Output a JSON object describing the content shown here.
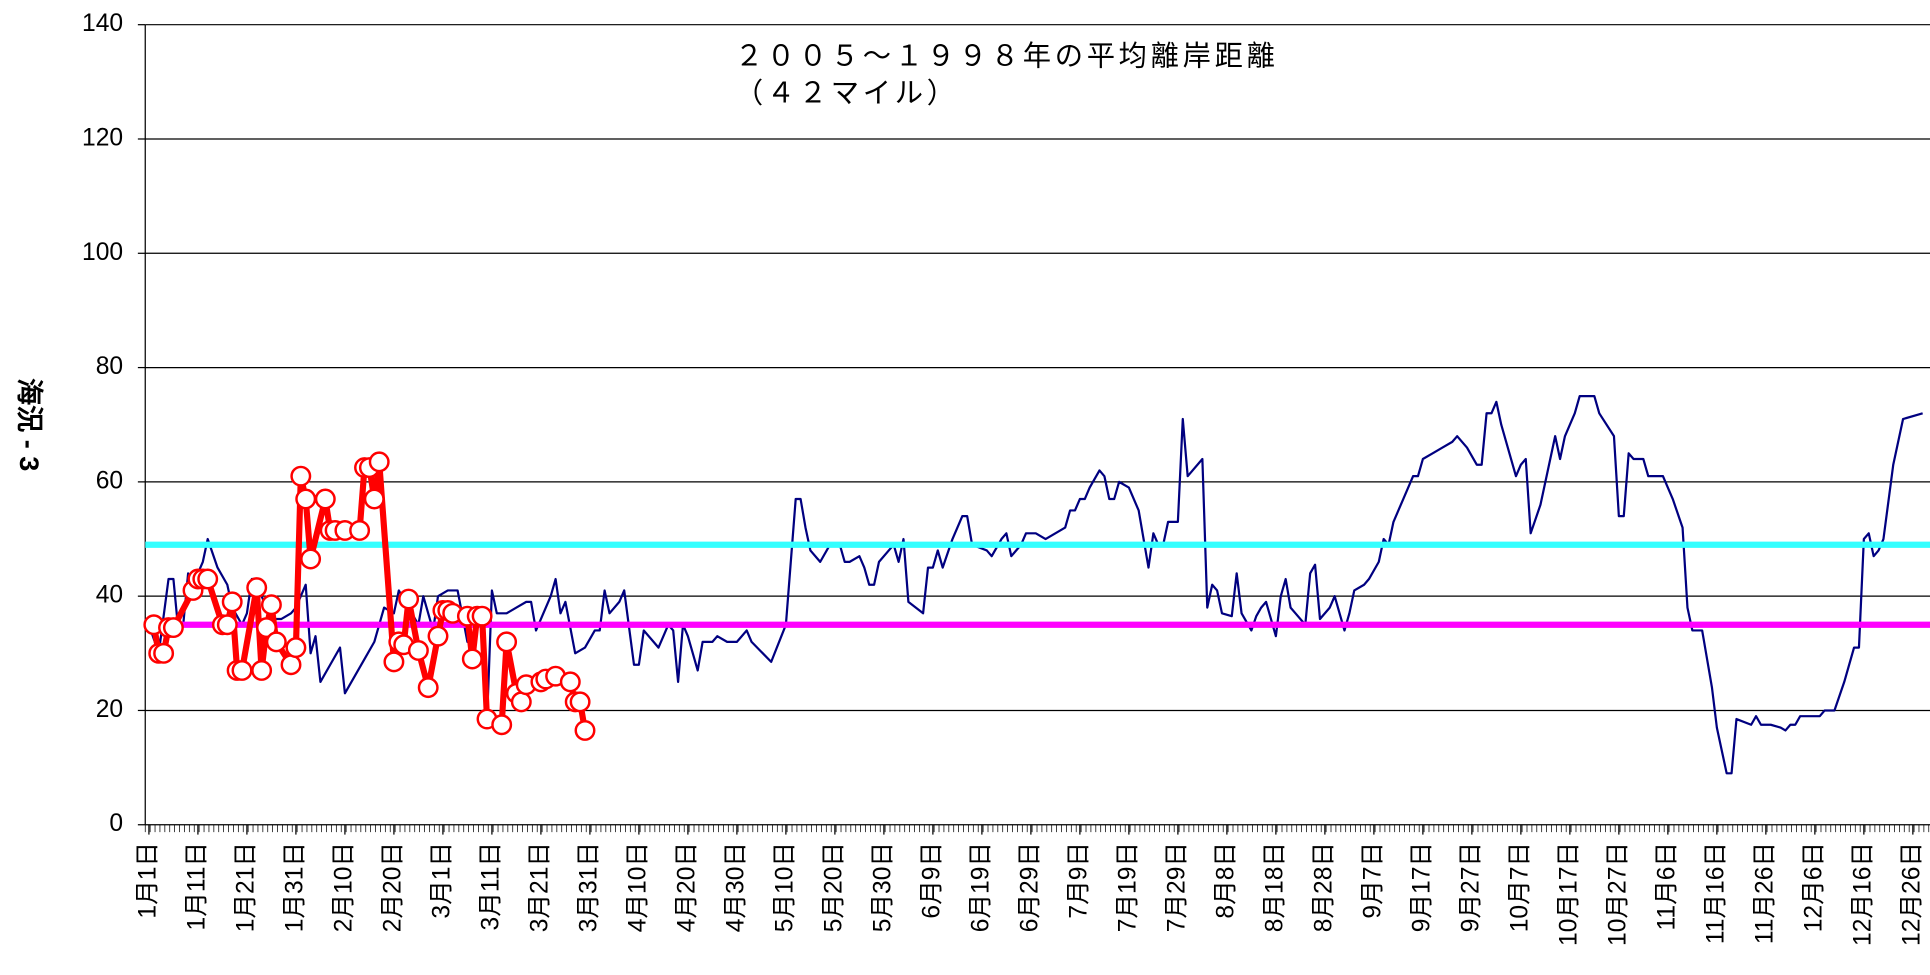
{
  "chart_data": {
    "type": "line",
    "annotations": [
      "２００５～１９９８年の平均離岸距離",
      "（４２マイル）"
    ],
    "ylabel": "海況 - 3",
    "xlim": [
      0.25,
      364.5
    ],
    "xticks": [
      {
        "value": 1,
        "label": "1月1日"
      },
      {
        "value": 11,
        "label": "1月11日"
      },
      {
        "value": 21,
        "label": "1月21日"
      },
      {
        "value": 31,
        "label": "1月31日"
      },
      {
        "value": 41,
        "label": "2月10日"
      },
      {
        "value": 51,
        "label": "2月20日"
      },
      {
        "value": 61,
        "label": "3月1日"
      },
      {
        "value": 71,
        "label": "3月11日"
      },
      {
        "value": 81,
        "label": "3月21日"
      },
      {
        "value": 91,
        "label": "3月31日"
      },
      {
        "value": 101,
        "label": "4月10日"
      },
      {
        "value": 111,
        "label": "4月20日"
      },
      {
        "value": 121,
        "label": "4月30日"
      },
      {
        "value": 131,
        "label": "5月10日"
      },
      {
        "value": 141,
        "label": "5月20日"
      },
      {
        "value": 151,
        "label": "5月30日"
      },
      {
        "value": 161,
        "label": "6月9日"
      },
      {
        "value": 171,
        "label": "6月19日"
      },
      {
        "value": 181,
        "label": "6月29日"
      },
      {
        "value": 191,
        "label": "7月9日"
      },
      {
        "value": 201,
        "label": "7月19日"
      },
      {
        "value": 211,
        "label": "7月29日"
      },
      {
        "value": 221,
        "label": "8月8日"
      },
      {
        "value": 231,
        "label": "8月18日"
      },
      {
        "value": 241,
        "label": "8月28日"
      },
      {
        "value": 251,
        "label": "9月7日"
      },
      {
        "value": 261,
        "label": "9月17日"
      },
      {
        "value": 271,
        "label": "9月27日"
      },
      {
        "value": 281,
        "label": "10月7日"
      },
      {
        "value": 291,
        "label": "10月17日"
      },
      {
        "value": 301,
        "label": "10月27日"
      },
      {
        "value": 311,
        "label": "11月6日"
      },
      {
        "value": 321,
        "label": "11月16日"
      },
      {
        "value": 331,
        "label": "11月26日"
      },
      {
        "value": 341,
        "label": "12月6日"
      },
      {
        "value": 351,
        "label": "12月16日"
      },
      {
        "value": 361,
        "label": "12月26日"
      }
    ],
    "ylim": [
      0,
      140
    ],
    "yticks": [
      0,
      20,
      40,
      60,
      80,
      100,
      120,
      140
    ],
    "grid": true,
    "series": [
      {
        "color": "#000080",
        "marker": "none",
        "x": [
          1,
          3,
          5,
          6,
          7,
          8,
          9,
          10,
          12,
          13,
          15,
          17,
          18,
          20,
          21,
          22,
          23,
          24,
          26,
          28,
          30,
          31,
          33,
          34,
          35,
          36,
          38,
          40,
          41,
          43,
          45,
          47,
          49,
          51,
          52,
          54,
          56,
          57,
          59,
          60,
          62,
          64,
          66,
          67,
          68,
          69,
          70,
          71,
          72,
          74,
          76,
          78,
          79,
          80,
          81,
          83,
          84,
          85,
          86,
          88,
          90,
          92,
          93,
          94,
          95,
          97,
          98,
          100,
          101,
          102,
          104,
          105,
          107,
          108,
          109,
          110,
          111,
          113,
          114,
          116,
          117,
          119,
          121,
          123,
          124,
          128,
          131,
          133,
          134,
          135,
          136,
          138,
          140,
          142,
          143,
          144,
          146,
          147,
          148,
          149,
          150,
          152,
          153,
          154,
          155,
          156,
          159,
          160,
          161,
          162,
          163,
          165,
          167,
          168,
          169,
          172,
          173,
          175,
          176,
          177,
          179,
          180,
          182,
          184,
          186,
          188,
          189,
          190,
          191,
          192,
          193,
          195,
          196,
          197,
          198,
          199,
          201,
          203,
          205,
          206,
          207,
          208,
          209,
          211,
          212,
          213,
          216,
          217,
          218,
          219,
          220,
          222,
          223,
          224,
          226,
          227,
          228,
          229,
          231,
          232,
          233,
          234,
          235,
          237,
          238,
          239,
          240,
          242,
          243,
          245,
          246,
          247,
          249,
          250,
          252,
          253,
          254,
          255,
          257,
          259,
          260,
          261,
          263,
          265,
          267,
          268,
          270,
          272,
          273,
          274,
          275,
          276,
          277,
          279,
          280,
          281,
          282,
          283,
          285,
          286,
          287,
          288,
          289,
          290,
          292,
          293,
          295,
          296,
          297,
          300,
          301,
          302,
          303,
          304,
          306,
          307,
          310,
          312,
          314,
          315,
          316,
          318,
          320,
          321,
          322,
          323,
          324,
          325,
          328,
          329,
          330,
          332,
          334,
          335,
          336,
          337,
          338,
          339,
          342,
          343,
          345,
          347,
          349,
          350,
          351,
          352,
          353,
          354,
          355,
          357,
          359,
          363
        ],
        "values": [
          35,
          30,
          43,
          43,
          34,
          35,
          44,
          42,
          46,
          50,
          45,
          42,
          38,
          35,
          37,
          43,
          43,
          40,
          36,
          36,
          37,
          38,
          42,
          30,
          33,
          25,
          28,
          31,
          23,
          26,
          29,
          32,
          38,
          37,
          41,
          38,
          35,
          40,
          34,
          40,
          41,
          41,
          32,
          33,
          28,
          30,
          18,
          41,
          37,
          37,
          38,
          39,
          39,
          34,
          36,
          40,
          43,
          37,
          39,
          30,
          31,
          34,
          34,
          41,
          37,
          39,
          41,
          28,
          28,
          34,
          32,
          31,
          35,
          34,
          25,
          35,
          33,
          27,
          32,
          32,
          33,
          32,
          32,
          34,
          32,
          28.5,
          35,
          57,
          57,
          52,
          48,
          46,
          49,
          49,
          46,
          46,
          47,
          45,
          42,
          42,
          46,
          48,
          49,
          46,
          50,
          39,
          37,
          45,
          45,
          48,
          45,
          50,
          54,
          54,
          49,
          48,
          47,
          50,
          51,
          47,
          49,
          51,
          51,
          50,
          51,
          52,
          55,
          55,
          57,
          57,
          59,
          62,
          61,
          57,
          57,
          60,
          59,
          55,
          45,
          51,
          49,
          49,
          53,
          53,
          71,
          61,
          64,
          38,
          42,
          41,
          37,
          36.5,
          44,
          37,
          34,
          36.5,
          38,
          39,
          33,
          40,
          43,
          38,
          37,
          35,
          44,
          45.5,
          36,
          38,
          40,
          34,
          37,
          41,
          42,
          43,
          46,
          50,
          49,
          53,
          57,
          61,
          61,
          64,
          65,
          66,
          67,
          68,
          66,
          63,
          63,
          72,
          72,
          74,
          70,
          64,
          61,
          63,
          64,
          51,
          56,
          60,
          64,
          68,
          64,
          68,
          72,
          75,
          75,
          75,
          72,
          68,
          54,
          54,
          65,
          64,
          64,
          61,
          61,
          57,
          52,
          38,
          34,
          34,
          24,
          17,
          13,
          9,
          9,
          18.5,
          17.5,
          19,
          17.5,
          17.5,
          17,
          16.5,
          17.5,
          17.5,
          19,
          19,
          19,
          20,
          20,
          25,
          31,
          31,
          50,
          51,
          47,
          48,
          50,
          63,
          71,
          72
        ]
      },
      {
        "color": "#ff0000",
        "marker": "circle",
        "x": [
          2,
          3,
          4,
          5,
          6,
          10,
          11,
          12,
          13,
          16,
          17,
          18,
          19,
          20,
          23,
          24,
          25,
          26,
          27,
          30,
          31,
          32,
          33,
          34,
          37,
          38,
          39,
          41,
          44,
          45,
          46,
          47,
          48,
          51,
          52,
          53,
          54,
          56,
          58,
          60,
          61,
          62,
          63,
          66,
          67,
          68,
          69,
          70,
          73,
          74,
          76,
          77,
          78,
          81,
          82,
          84,
          87,
          88,
          89,
          90
        ],
        "values": [
          35,
          30,
          30,
          34.5,
          34.5,
          41,
          43,
          43,
          43,
          35,
          35,
          39,
          27,
          27,
          41.5,
          27,
          34.5,
          38.5,
          32,
          28,
          31,
          61,
          57,
          46.5,
          57,
          51.5,
          51.5,
          51.5,
          51.5,
          62.5,
          62.5,
          57,
          63.5,
          28.5,
          32,
          31.5,
          39.5,
          30.5,
          24,
          33,
          37.5,
          37.5,
          37,
          36.5,
          29,
          36.5,
          36.5,
          18.5,
          17.5,
          32,
          23,
          21.5,
          24.5,
          25,
          25.5,
          26,
          25,
          21.5,
          21.5,
          16.5
        ]
      }
    ],
    "reference_lines": [
      {
        "value": 49,
        "color": "#33ffff"
      },
      {
        "value": 35,
        "color": "#ff00ff"
      }
    ]
  }
}
